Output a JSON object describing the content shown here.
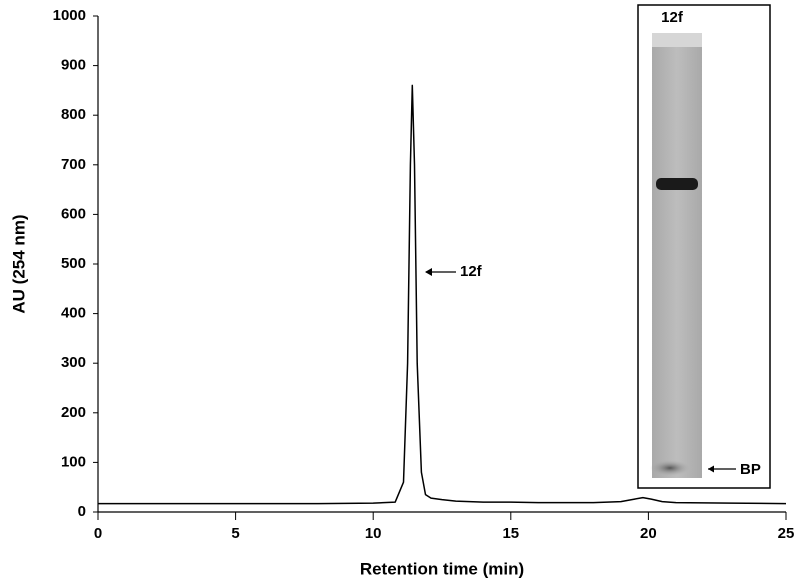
{
  "chart_data": {
    "type": "line",
    "xlabel": "Retention time (min)",
    "ylabel": "AU (254 nm)",
    "x": [
      0,
      5,
      8,
      10,
      10.8,
      11.1,
      11.25,
      11.35,
      11.42,
      11.5,
      11.6,
      11.75,
      11.9,
      12.1,
      12.5,
      13,
      14,
      15,
      16,
      17,
      18,
      19,
      19.5,
      19.8,
      20.1,
      20.5,
      21,
      23,
      25
    ],
    "series": [
      {
        "color": "#000000",
        "values": [
          17,
          17,
          17,
          18,
          20,
          60,
          300,
          700,
          860,
          700,
          300,
          80,
          35,
          28,
          25,
          22,
          20,
          20,
          19,
          19,
          19,
          21,
          26,
          29,
          26,
          21,
          19,
          18,
          17
        ]
      }
    ],
    "xlim": [
      0,
      25
    ],
    "xticks": [
      0,
      5,
      10,
      15,
      20,
      25
    ],
    "ylim": [
      0,
      1000
    ],
    "yticks": [
      0,
      100,
      200,
      300,
      400,
      500,
      600,
      700,
      800,
      900,
      1000
    ],
    "annotations": [
      {
        "text": "12f"
      }
    ],
    "inset": {
      "lane_label": "12f",
      "band_label": "BP"
    }
  }
}
